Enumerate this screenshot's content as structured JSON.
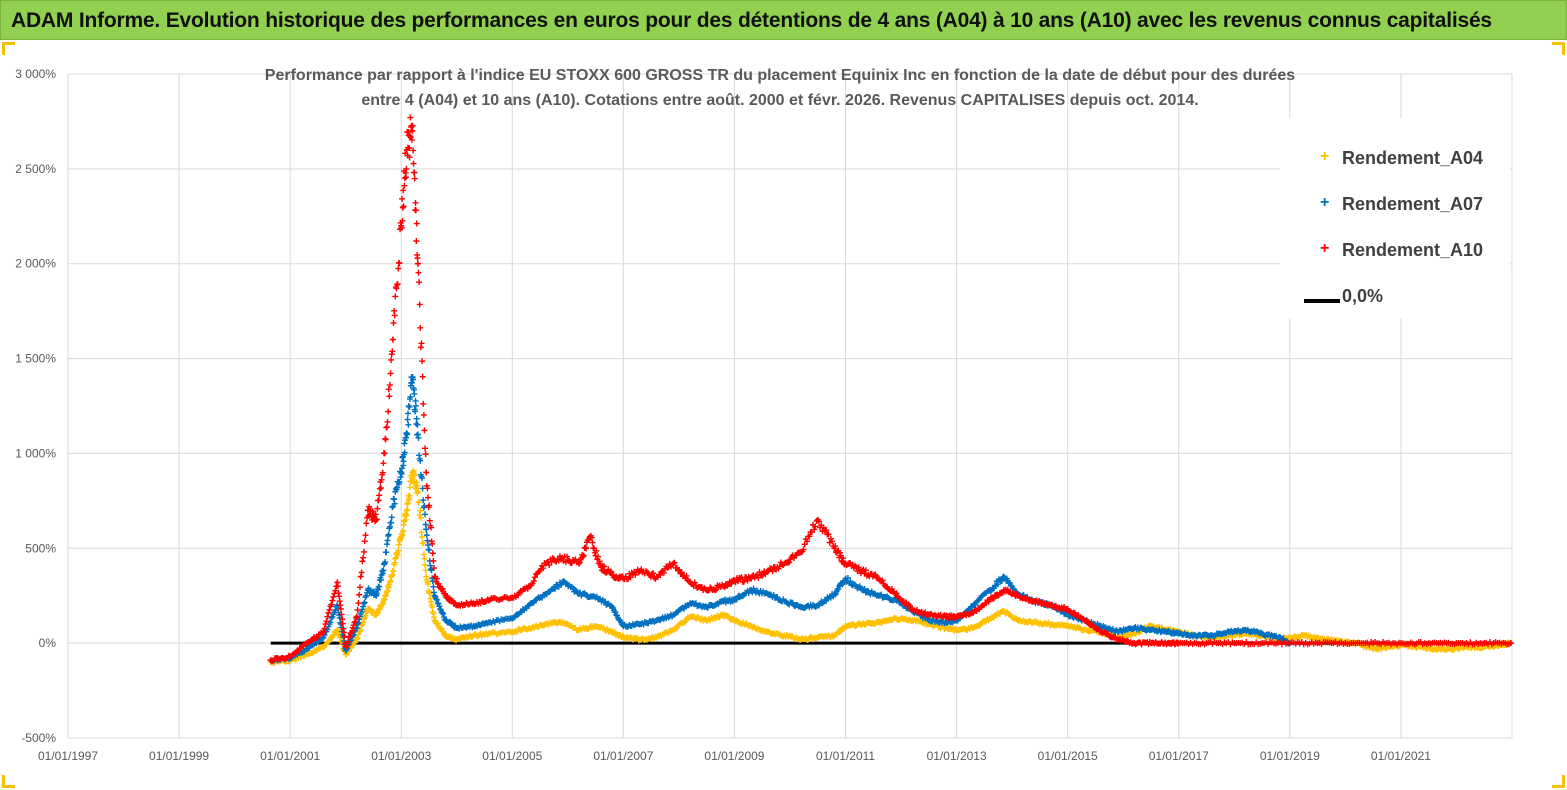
{
  "banner": {
    "title": "ADAM Informe. Evolution historique des performances en euros pour des détentions de 4 ans (A04) à 10 ans (A10) avec les revenus connus capitalisés"
  },
  "chart_data": {
    "type": "scatter",
    "title_line1": "Performance par rapport à l'indice EU STOXX 600 GROSS TR  du placement Equinix Inc en fonction de la date de début pour des durées",
    "title_line2": "entre 4 (A04) et 10 ans (A10). Cotations entre août. 2000 et févr. 2026. Revenus CAPITALISES depuis oct. 2014.",
    "xlabel": "",
    "ylabel": "",
    "ylim": [
      -500,
      3000
    ],
    "y_ticks": [
      -500,
      0,
      500,
      1000,
      1500,
      2000,
      2500,
      3000
    ],
    "y_tick_labels": [
      "-500%",
      "0%",
      "500%",
      "1 000%",
      "1 500%",
      "2 000%",
      "2 500%",
      "3 000%"
    ],
    "xlim": [
      1997.0,
      2023.0
    ],
    "x_ticks": [
      1997,
      1999,
      2001,
      2003,
      2005,
      2007,
      2009,
      2011,
      2013,
      2015,
      2017,
      2019,
      2021
    ],
    "x_tick_labels": [
      "01/01/1997",
      "01/01/1999",
      "01/01/2001",
      "01/01/2003",
      "01/01/2005",
      "01/01/2007",
      "01/01/2009",
      "01/01/2011",
      "01/01/2013",
      "01/01/2015",
      "01/01/2017",
      "01/01/2019",
      "01/01/2021"
    ],
    "grid": true,
    "legend_position": "top-right",
    "series": [
      {
        "name": "Rendement_A04",
        "color": "#ffc000",
        "marker": "+",
        "x": [
          2000.65,
          2001.0,
          2001.3,
          2001.6,
          2001.85,
          2002.0,
          2002.2,
          2002.4,
          2002.55,
          2002.7,
          2002.85,
          2003.0,
          2003.1,
          2003.2,
          2003.3,
          2003.45,
          2003.6,
          2003.8,
          2004.0,
          2004.3,
          2004.6,
          2005.0,
          2005.3,
          2005.6,
          2005.9,
          2006.2,
          2006.5,
          2006.8,
          2007.0,
          2007.3,
          2007.6,
          2007.9,
          2008.2,
          2008.5,
          2008.8,
          2009.0,
          2009.3,
          2009.6,
          2009.9,
          2010.2,
          2010.5,
          2010.8,
          2011.0,
          2011.3,
          2011.6,
          2011.9,
          2012.2,
          2012.5,
          2012.8,
          2013.0,
          2013.3,
          2013.6,
          2013.85,
          2014.1,
          2014.4,
          2014.7,
          2015.0,
          2015.3,
          2015.6,
          2015.9,
          2016.2,
          2016.5,
          2016.8,
          2017.0,
          2017.3,
          2017.6,
          2017.9,
          2018.2,
          2018.5,
          2018.8,
          2019.0,
          2019.3,
          2019.6,
          2019.9,
          2020.2,
          2020.5,
          2020.8,
          2021.0,
          2021.3,
          2021.6,
          2021.9,
          2022.2,
          2022.5,
          2022.8,
          2022.98
        ],
        "y": [
          -100,
          -90,
          -60,
          -20,
          70,
          -60,
          20,
          180,
          150,
          230,
          380,
          560,
          700,
          900,
          800,
          350,
          120,
          40,
          20,
          40,
          50,
          60,
          80,
          100,
          110,
          70,
          90,
          60,
          30,
          20,
          30,
          70,
          140,
          120,
          150,
          120,
          90,
          60,
          40,
          20,
          30,
          40,
          90,
          100,
          110,
          130,
          120,
          100,
          80,
          70,
          80,
          130,
          170,
          120,
          110,
          100,
          90,
          70,
          60,
          30,
          50,
          90,
          70,
          60,
          40,
          30,
          40,
          50,
          40,
          20,
          30,
          40,
          20,
          10,
          0,
          -30,
          -20,
          -10,
          -20,
          -30,
          -30,
          -20,
          -20,
          -10,
          0
        ]
      },
      {
        "name": "Rendement_A07",
        "color": "#0070c0",
        "marker": "+",
        "x": [
          2000.65,
          2001.0,
          2001.3,
          2001.6,
          2001.85,
          2002.0,
          2002.2,
          2002.4,
          2002.55,
          2002.7,
          2002.85,
          2003.0,
          2003.1,
          2003.2,
          2003.3,
          2003.45,
          2003.6,
          2003.8,
          2004.0,
          2004.3,
          2004.6,
          2005.0,
          2005.3,
          2005.6,
          2005.9,
          2006.2,
          2006.5,
          2006.8,
          2007.0,
          2007.3,
          2007.6,
          2007.9,
          2008.2,
          2008.5,
          2008.8,
          2009.0,
          2009.3,
          2009.6,
          2009.9,
          2010.2,
          2010.5,
          2010.8,
          2011.0,
          2011.3,
          2011.6,
          2011.9,
          2012.2,
          2012.5,
          2012.8,
          2013.0,
          2013.3,
          2013.6,
          2013.85,
          2014.1,
          2014.4,
          2014.7,
          2015.0,
          2015.3,
          2015.6,
          2015.9,
          2016.2,
          2016.5,
          2016.8,
          2017.0,
          2017.3,
          2017.6,
          2017.9,
          2018.2,
          2018.5,
          2018.8,
          2019.0
        ],
        "y": [
          -90,
          -80,
          -30,
          30,
          200,
          -40,
          80,
          280,
          250,
          420,
          720,
          900,
          1100,
          1400,
          1100,
          600,
          250,
          120,
          80,
          90,
          110,
          130,
          200,
          260,
          320,
          260,
          240,
          190,
          90,
          100,
          120,
          150,
          210,
          190,
          220,
          230,
          280,
          260,
          220,
          190,
          200,
          260,
          340,
          280,
          250,
          230,
          170,
          120,
          110,
          120,
          200,
          280,
          350,
          260,
          220,
          200,
          150,
          120,
          90,
          60,
          80,
          70,
          60,
          50,
          40,
          40,
          60,
          70,
          50,
          30,
          0
        ]
      },
      {
        "name": "Rendement_A10",
        "color": "#ff0000",
        "marker": "+",
        "x": [
          2000.65,
          2001.0,
          2001.3,
          2001.6,
          2001.85,
          2002.0,
          2002.2,
          2002.4,
          2002.55,
          2002.7,
          2002.85,
          2003.0,
          2003.1,
          2003.2,
          2003.3,
          2003.45,
          2003.6,
          2003.8,
          2004.0,
          2004.3,
          2004.6,
          2005.0,
          2005.3,
          2005.6,
          2005.9,
          2006.2,
          2006.4,
          2006.6,
          2006.8,
          2007.0,
          2007.3,
          2007.6,
          2007.9,
          2008.2,
          2008.5,
          2008.8,
          2009.0,
          2009.3,
          2009.6,
          2009.9,
          2010.2,
          2010.5,
          2010.8,
          2011.0,
          2011.3,
          2011.6,
          2011.9,
          2012.2,
          2012.5,
          2012.8,
          2013.0,
          2013.3,
          2013.6,
          2013.85,
          2014.1,
          2014.4,
          2014.7,
          2015.0,
          2015.3,
          2015.6,
          2015.9,
          2016.2,
          2016.5,
          2016.8,
          2017.0,
          2017.5,
          2018.0,
          2018.5,
          2019.0,
          2019.5,
          2020.0,
          2020.5,
          2021.0,
          2021.5,
          2022.0,
          2022.5,
          2022.98
        ],
        "y": [
          -90,
          -70,
          0,
          60,
          320,
          -20,
          140,
          700,
          650,
          1000,
          1600,
          2200,
          2600,
          2700,
          2000,
          900,
          350,
          250,
          200,
          210,
          230,
          240,
          300,
          420,
          450,
          420,
          560,
          400,
          360,
          340,
          380,
          350,
          420,
          320,
          280,
          300,
          330,
          340,
          380,
          420,
          480,
          650,
          500,
          420,
          380,
          340,
          260,
          180,
          150,
          140,
          140,
          160,
          230,
          280,
          250,
          220,
          200,
          180,
          120,
          60,
          20,
          0,
          0,
          0,
          0,
          0,
          0,
          0,
          0,
          0,
          0,
          0,
          0,
          0,
          0,
          0,
          0
        ]
      },
      {
        "name": "0,0%",
        "color": "#000000",
        "marker": "line",
        "x": [
          2000.65,
          2022.98
        ],
        "y": [
          0,
          0
        ]
      }
    ]
  }
}
